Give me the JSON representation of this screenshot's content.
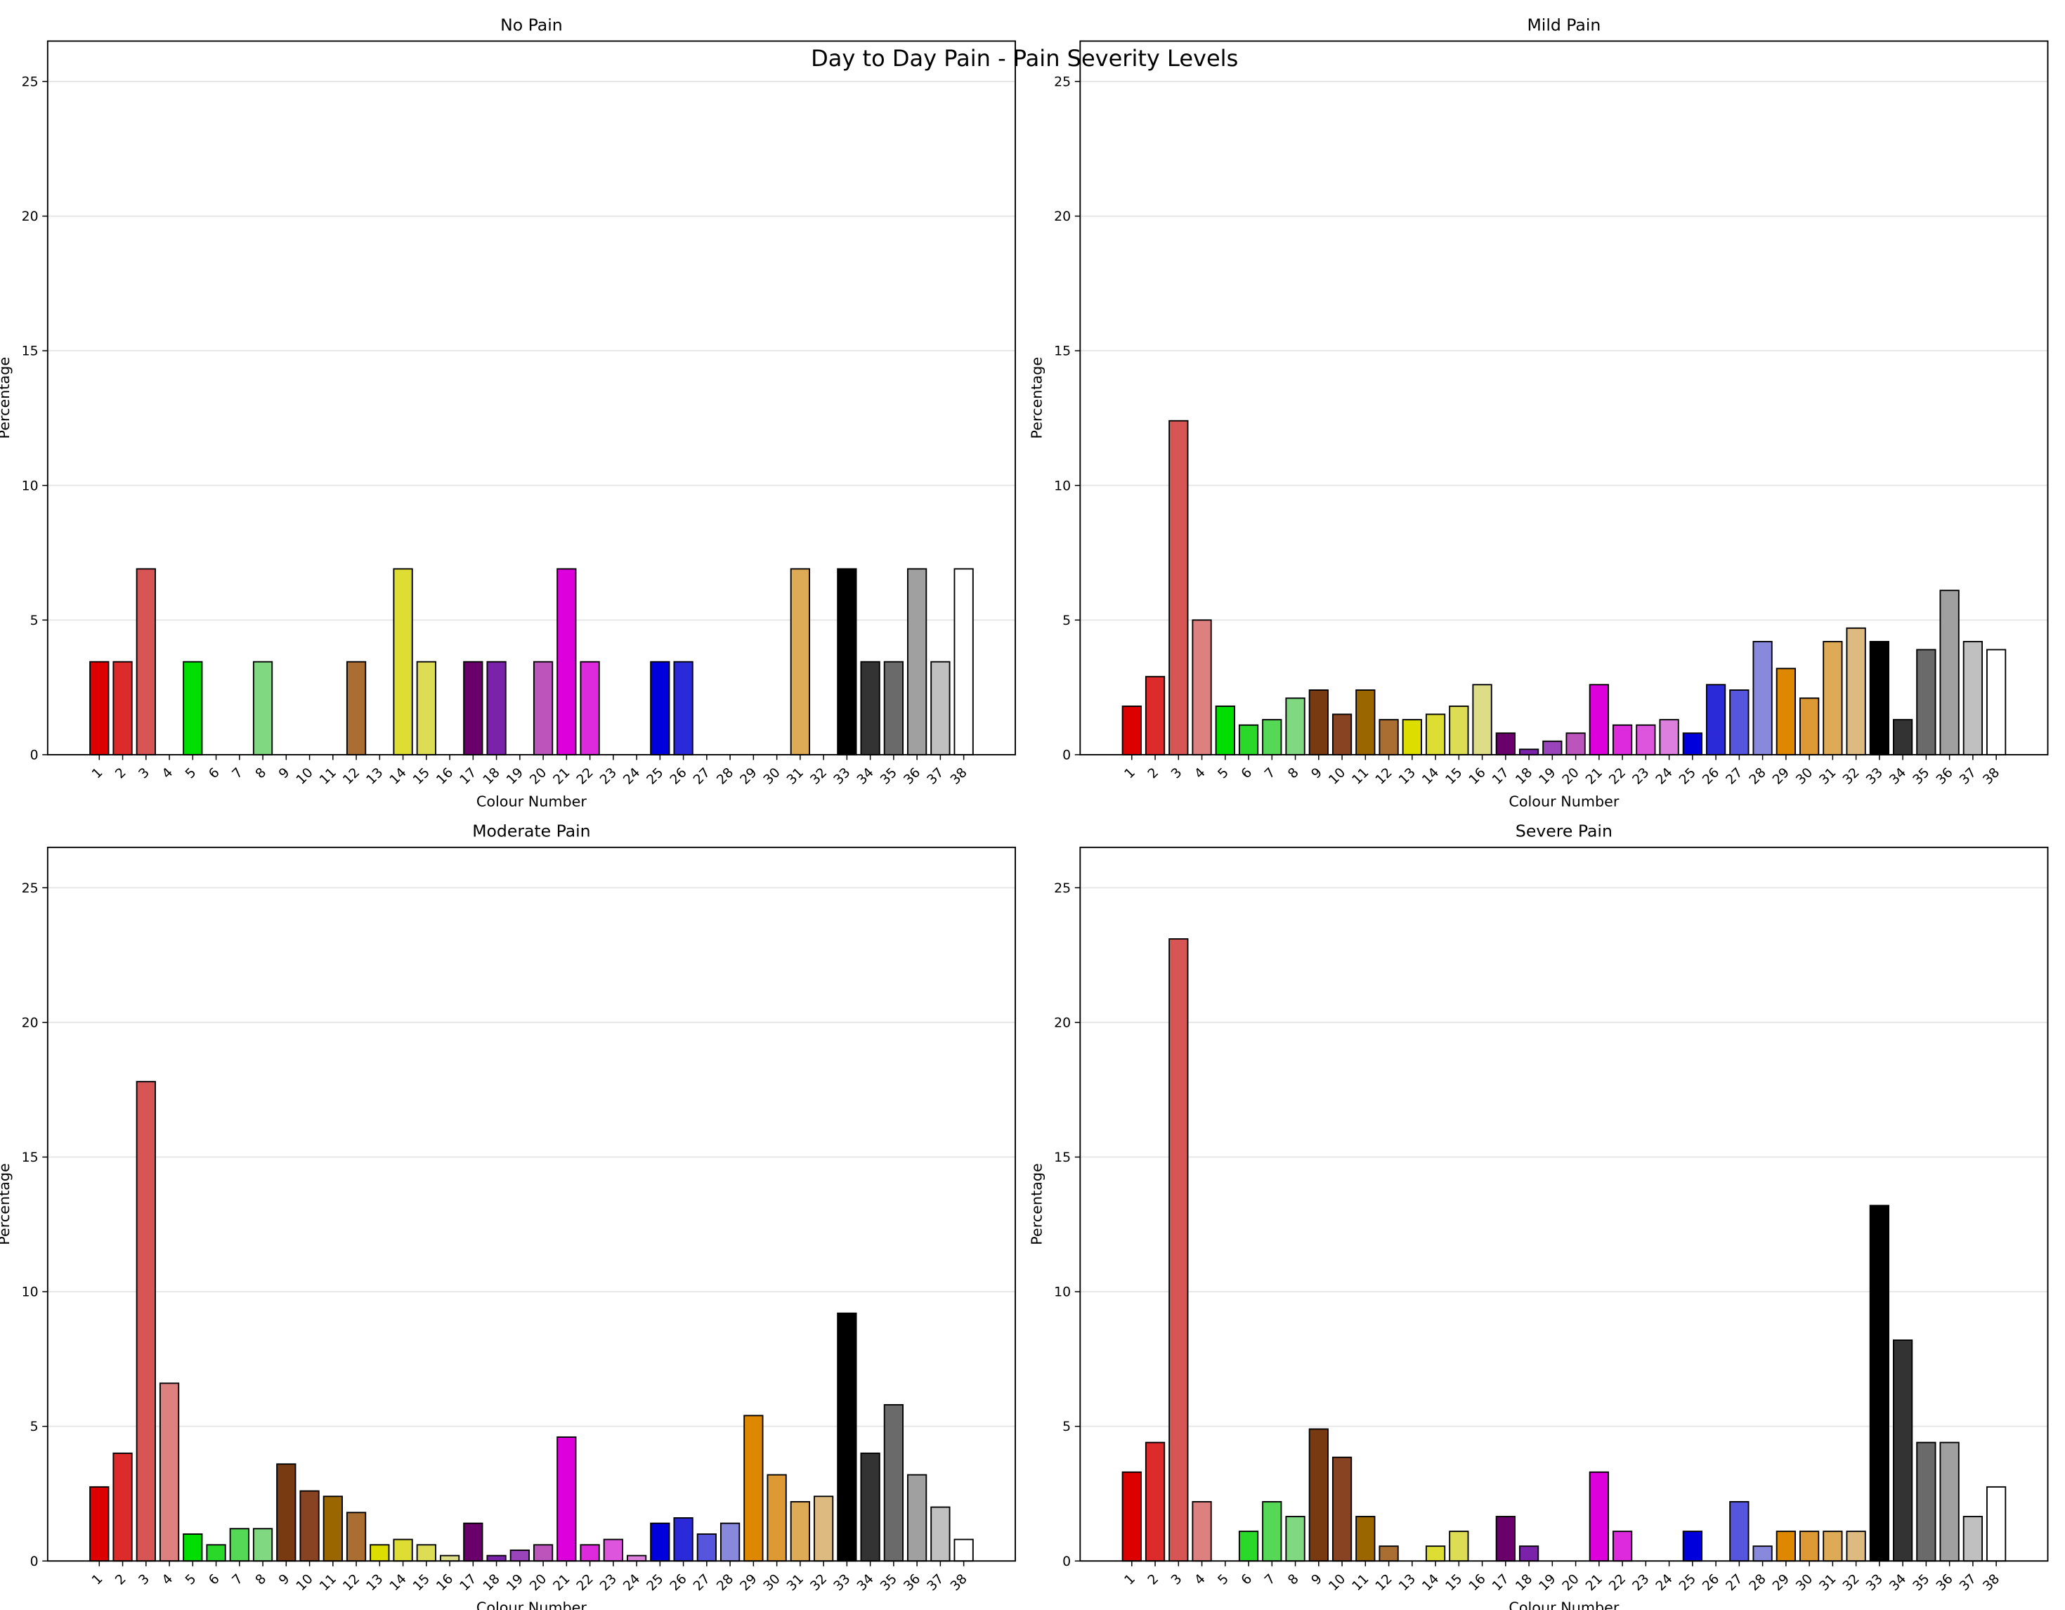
{
  "chart_data": {
    "type": "bar",
    "title": "Day to Day Pain - Pain Severity Levels",
    "xlabel": "Colour Number",
    "ylabel": "Percentage",
    "ylim": [
      0,
      26.5
    ],
    "yticks": [
      0,
      5,
      10,
      15,
      20,
      25
    ],
    "grid": "horizontal",
    "categories": [
      "1",
      "2",
      "3",
      "4",
      "5",
      "6",
      "7",
      "8",
      "9",
      "10",
      "11",
      "12",
      "13",
      "14",
      "15",
      "16",
      "17",
      "18",
      "19",
      "20",
      "21",
      "22",
      "23",
      "24",
      "25",
      "26",
      "27",
      "28",
      "29",
      "30",
      "31",
      "32",
      "33",
      "34",
      "35",
      "36",
      "37",
      "38"
    ],
    "colors": [
      "#dd0000",
      "#dd2a2a",
      "#d85555",
      "#dd8080",
      "#00dd00",
      "#2ad82a",
      "#55d855",
      "#80d880",
      "#773a11",
      "#884422",
      "#996600",
      "#aa6e33",
      "#dddd00",
      "#dddd33",
      "#dddd55",
      "#dddd88",
      "#6a006a",
      "#7a22aa",
      "#9944bb",
      "#bb55bb",
      "#dd00dd",
      "#dd2add",
      "#dd55dd",
      "#dd80dd",
      "#0000dd",
      "#2a2ad8",
      "#5555dd",
      "#8888dd",
      "#dd8800",
      "#dd9933",
      "#ddaa55",
      "#ddbb80",
      "#000000",
      "#333333",
      "#6a6a6a",
      "#a0a0a0",
      "#c0c0c0",
      "#ffffff"
    ],
    "panels": [
      {
        "title": "No Pain",
        "values": [
          3.45,
          3.45,
          6.9,
          0,
          3.45,
          0,
          0,
          3.45,
          0,
          0,
          0,
          3.45,
          0,
          6.9,
          3.45,
          0,
          3.45,
          3.45,
          0,
          3.45,
          6.9,
          3.45,
          0,
          0,
          3.45,
          3.45,
          0,
          0,
          0,
          0,
          6.9,
          0,
          6.9,
          3.45,
          3.45,
          6.9,
          3.45,
          6.9
        ]
      },
      {
        "title": "Mild Pain",
        "values": [
          1.8,
          2.9,
          12.4,
          5.0,
          1.8,
          1.1,
          1.3,
          2.1,
          2.4,
          1.5,
          2.4,
          1.3,
          1.3,
          1.5,
          1.8,
          2.6,
          0.8,
          0.2,
          0.5,
          0.8,
          2.6,
          1.1,
          1.1,
          1.3,
          0.8,
          2.6,
          2.4,
          4.2,
          3.2,
          2.1,
          4.2,
          4.7,
          4.2,
          1.3,
          3.9,
          6.1,
          4.2,
          3.9
        ]
      },
      {
        "title": "Moderate Pain",
        "values": [
          2.75,
          4.0,
          17.8,
          6.6,
          1.0,
          0.6,
          1.2,
          1.2,
          3.6,
          2.6,
          2.4,
          1.8,
          0.6,
          0.8,
          0.6,
          0.2,
          1.4,
          0.2,
          0.4,
          0.6,
          4.6,
          0.6,
          0.8,
          0.2,
          1.4,
          1.6,
          1.0,
          1.4,
          5.4,
          3.2,
          2.2,
          2.4,
          9.2,
          4.0,
          5.8,
          3.2,
          2.0,
          0.8
        ]
      },
      {
        "title": "Severe Pain",
        "values": [
          3.3,
          4.4,
          23.1,
          2.2,
          0,
          1.1,
          2.2,
          1.65,
          4.9,
          3.85,
          1.65,
          0.55,
          0,
          0.55,
          1.1,
          0,
          1.65,
          0.55,
          0,
          0,
          3.3,
          1.1,
          0,
          0,
          1.1,
          0,
          2.2,
          0.55,
          1.1,
          1.1,
          1.1,
          1.1,
          13.2,
          8.2,
          4.4,
          4.4,
          1.65,
          2.75
        ]
      }
    ]
  }
}
